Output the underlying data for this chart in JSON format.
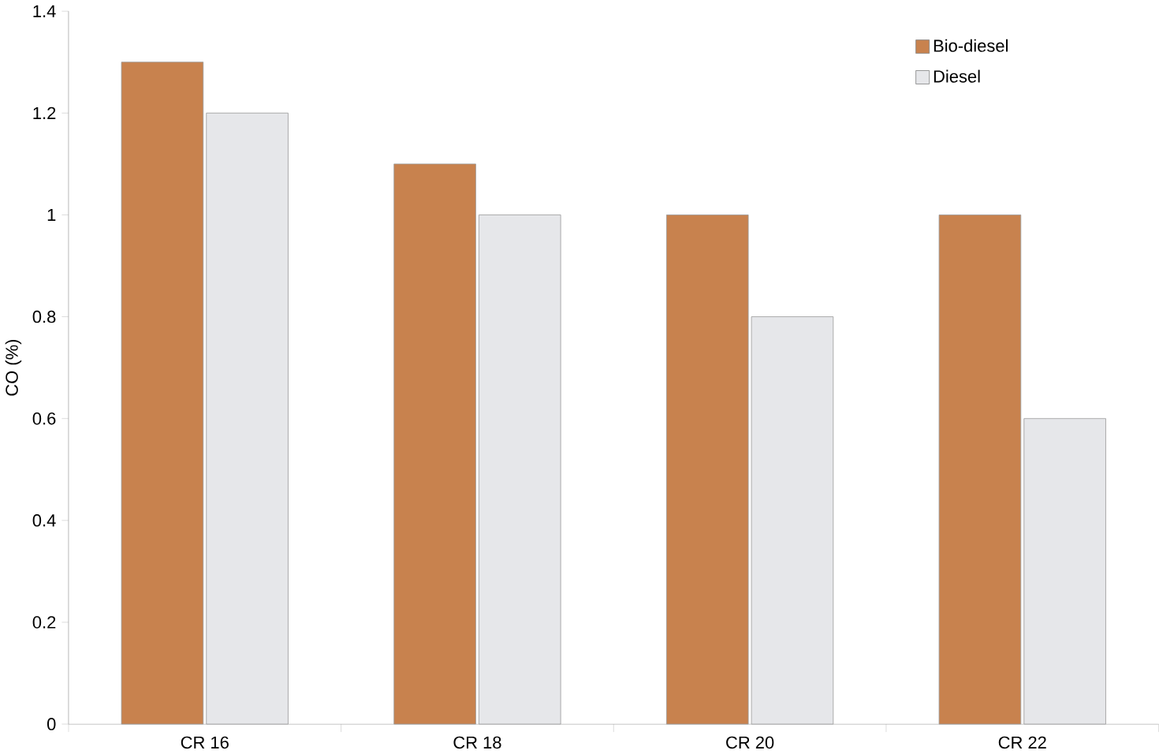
{
  "chart_data": {
    "type": "bar",
    "ylabel": "CO (%)",
    "categories": [
      "CR 16",
      "CR 18",
      "CR 20",
      "CR 22"
    ],
    "series": [
      {
        "name": "Bio-diesel",
        "color": "#c8824e",
        "values": [
          1.3,
          1.1,
          1.0,
          1.0
        ]
      },
      {
        "name": "Diesel",
        "color": "#e6e7ea",
        "values": [
          1.2,
          1.0,
          0.8,
          0.6
        ]
      }
    ],
    "ylim": [
      0,
      1.4
    ],
    "yticks": [
      0,
      0.2,
      0.4,
      0.6,
      0.8,
      1,
      1.2,
      1.4
    ],
    "grid": false,
    "legend": "top right"
  }
}
